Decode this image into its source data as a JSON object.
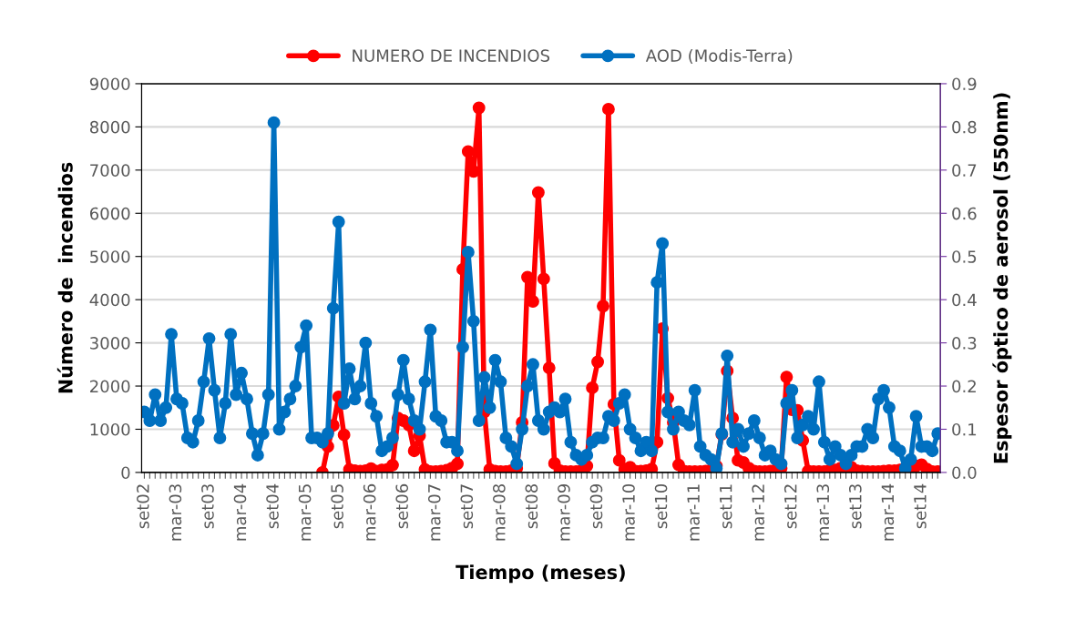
{
  "chart_data": {
    "type": "line",
    "xlabel": "Tiempo (meses)",
    "ylabel": "Número de  incendios",
    "y2label": "Espesor óptico de aerosol (550nm)",
    "categories": [
      "set02",
      null,
      null,
      null,
      null,
      null,
      "mar-03",
      null,
      null,
      null,
      null,
      null,
      "set03",
      null,
      null,
      null,
      null,
      null,
      "mar-04",
      null,
      null,
      null,
      null,
      null,
      "set04",
      null,
      null,
      null,
      null,
      null,
      "mar-05",
      null,
      null,
      null,
      null,
      null,
      "set05",
      null,
      null,
      null,
      null,
      null,
      "mar-06",
      null,
      null,
      null,
      null,
      null,
      "set06",
      null,
      null,
      null,
      null,
      null,
      "mar-07",
      null,
      null,
      null,
      null,
      null,
      "set07",
      null,
      null,
      null,
      null,
      null,
      "mar-08",
      null,
      null,
      null,
      null,
      null,
      "set08",
      null,
      null,
      null,
      null,
      null,
      "mar-09",
      null,
      null,
      null,
      null,
      null,
      "set09",
      null,
      null,
      null,
      null,
      null,
      "mar-10",
      null,
      null,
      null,
      null,
      null,
      "set10",
      null,
      null,
      null,
      null,
      null,
      "mar-11",
      null,
      null,
      null,
      null,
      null,
      "set11",
      null,
      null,
      null,
      null,
      null,
      "mar-12",
      null,
      null,
      null,
      null,
      null,
      "set12",
      null,
      null,
      null,
      null,
      null,
      "mar-13",
      null,
      null,
      null,
      null,
      null,
      "set13",
      null,
      null,
      null,
      null,
      null,
      "mar-14",
      null,
      null,
      null,
      null,
      null,
      "set14",
      null,
      null,
      null
    ],
    "series": [
      {
        "name": "NUMERO DE INCENDIOS",
        "color": "#ff0000",
        "values": [
          null,
          null,
          null,
          null,
          null,
          null,
          null,
          null,
          null,
          null,
          null,
          null,
          null,
          null,
          null,
          null,
          null,
          null,
          null,
          null,
          null,
          null,
          null,
          null,
          null,
          null,
          null,
          null,
          null,
          null,
          null,
          null,
          null,
          0,
          600,
          1090,
          1750,
          870,
          70,
          40,
          30,
          40,
          90,
          30,
          60,
          70,
          170,
          1260,
          1200,
          1100,
          500,
          850,
          70,
          20,
          20,
          30,
          50,
          100,
          200,
          4700,
          7430,
          6970,
          8440,
          1400,
          70,
          30,
          20,
          20,
          40,
          100,
          1160,
          4520,
          3960,
          6480,
          4480,
          2420,
          210,
          40,
          20,
          20,
          20,
          40,
          150,
          1960,
          2560,
          3850,
          8410,
          1580,
          280,
          80,
          120,
          30,
          30,
          40,
          80,
          700,
          3330,
          1720,
          1160,
          175,
          30,
          20,
          20,
          20,
          30,
          60,
          150,
          880,
          2350,
          1260,
          280,
          230,
          100,
          30,
          20,
          20,
          30,
          60,
          100,
          2210,
          1450,
          1440,
          740,
          30,
          20,
          20,
          20,
          50,
          60,
          100,
          130,
          120,
          40,
          30,
          20,
          20,
          20,
          30,
          40,
          40,
          60,
          100,
          110,
          150,
          180,
          80,
          20,
          20
        ]
      },
      {
        "name": "AOD (Modis-Terra)",
        "color": "#0070c0",
        "axis": "y2",
        "values": [
          0.14,
          0.12,
          0.18,
          0.12,
          0.15,
          0.32,
          0.17,
          0.16,
          0.08,
          0.07,
          0.12,
          0.21,
          0.31,
          0.19,
          0.08,
          0.16,
          0.32,
          0.18,
          0.23,
          0.17,
          0.09,
          0.04,
          0.09,
          0.18,
          0.81,
          0.1,
          0.14,
          0.17,
          0.2,
          0.29,
          0.34,
          0.08,
          0.08,
          0.07,
          0.09,
          0.38,
          0.58,
          0.16,
          0.24,
          0.17,
          0.2,
          0.3,
          0.16,
          0.13,
          0.05,
          0.06,
          0.08,
          0.18,
          0.26,
          0.17,
          0.12,
          0.1,
          0.21,
          0.33,
          0.13,
          0.12,
          0.07,
          0.07,
          0.05,
          0.29,
          0.51,
          0.35,
          0.12,
          0.22,
          0.15,
          0.26,
          0.21,
          0.08,
          0.06,
          0.02,
          0.1,
          0.2,
          0.25,
          0.12,
          0.1,
          0.14,
          0.15,
          0.14,
          0.17,
          0.07,
          0.04,
          0.03,
          0.04,
          0.07,
          0.08,
          0.08,
          0.13,
          0.12,
          0.16,
          0.18,
          0.1,
          0.08,
          0.05,
          0.07,
          0.05,
          0.44,
          0.53,
          0.14,
          0.1,
          0.14,
          0.12,
          0.11,
          0.19,
          0.06,
          0.04,
          0.03,
          0.01,
          0.09,
          0.27,
          0.07,
          0.1,
          0.06,
          0.09,
          0.12,
          0.08,
          0.04,
          0.05,
          0.03,
          0.02,
          0.16,
          0.19,
          0.08,
          0.11,
          0.13,
          0.1,
          0.21,
          0.07,
          0.03,
          0.06,
          0.04,
          0.02,
          0.04,
          0.06,
          0.06,
          0.1,
          0.08,
          0.17,
          0.19,
          0.15,
          0.06,
          0.05,
          0.01,
          0.03,
          0.13,
          0.06,
          0.06,
          0.05,
          0.09
        ]
      }
    ],
    "ylim": [
      0,
      9000
    ],
    "yticks": [
      0,
      1000,
      2000,
      3000,
      4000,
      5000,
      6000,
      7000,
      8000,
      9000
    ],
    "y2lim": [
      0,
      0.9
    ],
    "y2ticks": [
      {
        "value": 0,
        "label": "0.0"
      },
      0.1,
      0.2,
      0.3,
      0.4,
      0.5,
      0.6,
      0.7,
      0.8,
      0.9
    ],
    "grid": "y",
    "legend": "top",
    "marker": "circle",
    "line_style": "solid"
  }
}
